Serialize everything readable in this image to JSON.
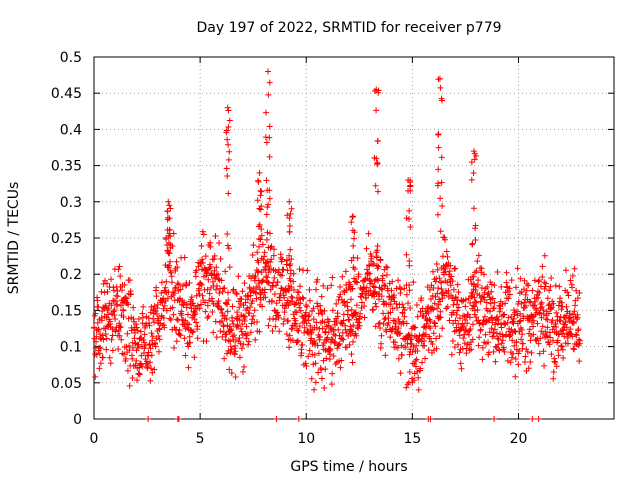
{
  "chart_data": {
    "type": "scatter",
    "title": "Day 197 of 2022, SRMTID for receiver p779",
    "xlabel": "GPS time / hours",
    "ylabel": "SRMTID / TECUs",
    "xlim": [
      0,
      24.5
    ],
    "ylim": [
      0,
      0.5
    ],
    "xticks": [
      0,
      5,
      10,
      15,
      20
    ],
    "xtick_labels": [
      "0",
      "5",
      "10",
      "15",
      "20"
    ],
    "yticks": [
      0,
      0.05,
      0.1,
      0.15,
      0.2,
      0.25,
      0.3,
      0.35,
      0.4,
      0.45,
      0.5
    ],
    "ytick_labels": [
      "0",
      "0.05",
      "0.1",
      "0.15",
      "0.2",
      "0.25",
      "0.3",
      "0.35",
      "0.4",
      "0.45",
      "0.5"
    ],
    "grid": true,
    "marker": "+",
    "series": [
      {
        "name": "SRMTID",
        "color": "#ff0000",
        "baseline_profile": {
          "hours": [
            0,
            0.5,
            1,
            1.5,
            2,
            2.5,
            3,
            3.5,
            4,
            4.5,
            5,
            5.5,
            6,
            6.5,
            7,
            7.5,
            8,
            8.5,
            9,
            9.5,
            10,
            10.5,
            11,
            11.5,
            12,
            12.5,
            13,
            13.5,
            14,
            14.5,
            15,
            15.5,
            16,
            16.5,
            17,
            17.5,
            18,
            18.5,
            19,
            19.5,
            20,
            20.5,
            21,
            21.5,
            22,
            22.5,
            22.9
          ],
          "typical_value": [
            0.12,
            0.13,
            0.16,
            0.14,
            0.1,
            0.1,
            0.13,
            0.2,
            0.15,
            0.13,
            0.19,
            0.2,
            0.15,
            0.12,
            0.13,
            0.17,
            0.2,
            0.17,
            0.17,
            0.15,
            0.13,
            0.11,
            0.11,
            0.12,
            0.14,
            0.16,
            0.2,
            0.16,
            0.15,
            0.12,
            0.1,
            0.11,
            0.15,
            0.2,
            0.15,
            0.12,
            0.16,
            0.15,
            0.13,
            0.14,
            0.12,
            0.13,
            0.16,
            0.14,
            0.13,
            0.14,
            0.13
          ]
        },
        "spikes": [
          {
            "hour": 3.5,
            "peak": 0.3
          },
          {
            "hour": 6.3,
            "peak": 0.43
          },
          {
            "hour": 7.8,
            "peak": 0.34
          },
          {
            "hour": 8.2,
            "peak": 0.48
          },
          {
            "hour": 9.2,
            "peak": 0.3
          },
          {
            "hour": 12.2,
            "peak": 0.28
          },
          {
            "hour": 13.3,
            "peak": 0.455
          },
          {
            "hour": 14.8,
            "peak": 0.33
          },
          {
            "hour": 16.3,
            "peak": 0.47
          },
          {
            "hour": 17.9,
            "peak": 0.37
          }
        ],
        "zero_points": [
          2.55,
          3.95,
          4.0,
          8.6,
          9.65,
          15.75,
          15.85,
          18.85,
          20.65,
          20.95
        ]
      }
    ]
  }
}
